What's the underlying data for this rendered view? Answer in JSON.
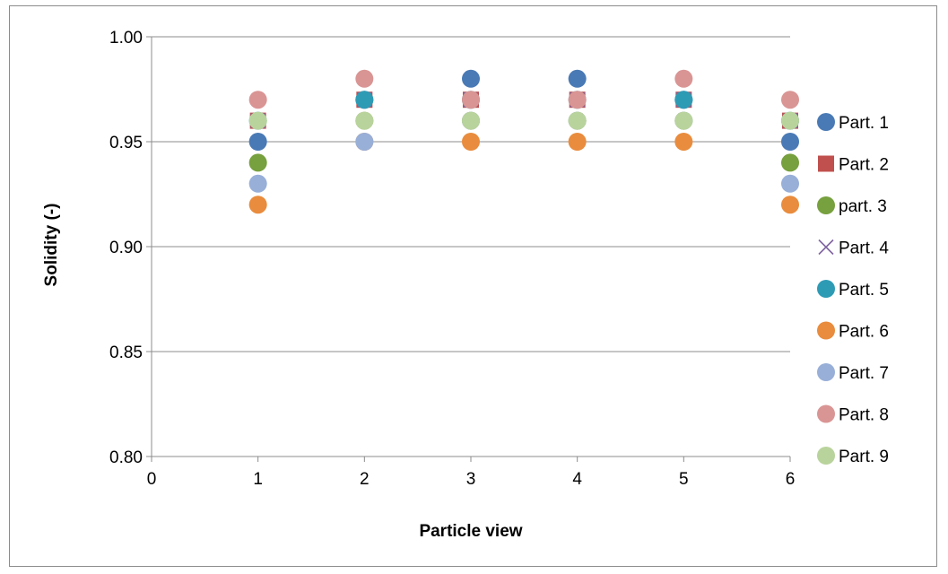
{
  "chart_data": {
    "type": "scatter",
    "title": "",
    "xlabel": "Particle view",
    "ylabel": "Solidity (-)",
    "xlim": [
      0,
      6
    ],
    "ylim": [
      0.8,
      1.0
    ],
    "x_ticks": [
      "0",
      "1",
      "2",
      "3",
      "4",
      "5",
      "6"
    ],
    "y_ticks": [
      "0.80",
      "0.85",
      "0.90",
      "0.95",
      "1.00"
    ],
    "grid": "horizontal",
    "legend_position": "right",
    "x": [
      1,
      2,
      3,
      4,
      5,
      6
    ],
    "series": [
      {
        "name": "Part. 1",
        "marker": "circle",
        "color": "#4a7ab5",
        "values": [
          0.95,
          0.97,
          0.98,
          0.98,
          0.97,
          0.95
        ]
      },
      {
        "name": "Part. 2",
        "marker": "square",
        "color": "#c0504d",
        "values": [
          0.96,
          0.97,
          0.97,
          0.97,
          0.97,
          0.96
        ]
      },
      {
        "name": "part. 3",
        "marker": "circle",
        "color": "#77a03e",
        "values": [
          0.94,
          0.96,
          0.96,
          0.96,
          0.96,
          0.94
        ]
      },
      {
        "name": "Part. 4",
        "marker": "x",
        "color": "#8064a2",
        "values": [
          0.96,
          0.97,
          0.97,
          0.97,
          0.97,
          0.96
        ]
      },
      {
        "name": "Part. 5",
        "marker": "circle",
        "color": "#2e9bb5",
        "values": [
          0.96,
          0.97,
          0.97,
          0.97,
          0.97,
          0.96
        ]
      },
      {
        "name": "Part. 6",
        "marker": "circle",
        "color": "#e98c3d",
        "values": [
          0.92,
          0.95,
          0.95,
          0.95,
          0.95,
          0.92
        ]
      },
      {
        "name": "Part. 7",
        "marker": "circle",
        "color": "#98afd8",
        "values": [
          0.93,
          0.95,
          0.96,
          0.96,
          0.96,
          0.93
        ]
      },
      {
        "name": "Part. 8",
        "marker": "circle",
        "color": "#d99594",
        "values": [
          0.97,
          0.98,
          0.97,
          0.97,
          0.98,
          0.97
        ]
      },
      {
        "name": "Part. 9",
        "marker": "circle",
        "color": "#b9d39c",
        "values": [
          0.96,
          0.96,
          0.96,
          0.96,
          0.96,
          0.96
        ]
      }
    ]
  }
}
